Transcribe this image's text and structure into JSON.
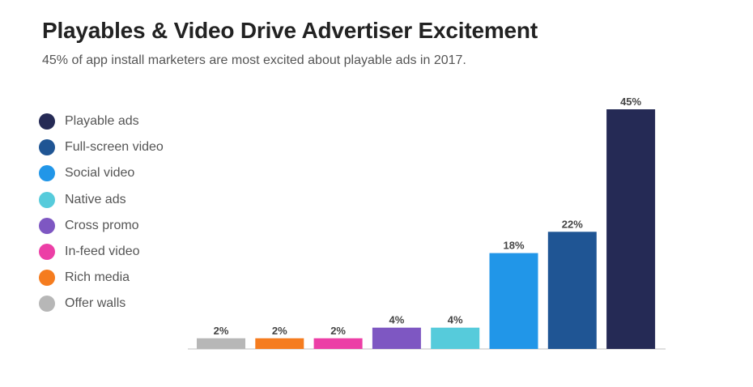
{
  "header": {
    "title": "Playables & Video Drive Advertiser Excitement",
    "subtitle": "45% of app install marketers are most excited about playable ads in 2017."
  },
  "chart_data": {
    "type": "bar",
    "title": "Playables & Video Drive Advertiser Excitement",
    "subtitle": "45% of app install marketers are most excited about playable ads in 2017.",
    "xlabel": "",
    "ylabel": "",
    "ylim": [
      0,
      45
    ],
    "grid": false,
    "legend_position": "left",
    "value_suffix": "%",
    "categories": [
      "Offer walls",
      "Rich media",
      "In-feed video",
      "Cross promo",
      "Native ads",
      "Social video",
      "Full-screen video",
      "Playable ads"
    ],
    "values": [
      2,
      2,
      2,
      4,
      4,
      18,
      22,
      45
    ],
    "colors": [
      "#b7b7b7",
      "#f57c1f",
      "#ec3fa6",
      "#7e57c2",
      "#56cbdb",
      "#2196e8",
      "#1f5594",
      "#252a55"
    ]
  },
  "legend": {
    "items": [
      {
        "label": "Playable ads",
        "color": "#252a55"
      },
      {
        "label": "Full-screen video",
        "color": "#1f5594"
      },
      {
        "label": "Social video",
        "color": "#2196e8"
      },
      {
        "label": "Native ads",
        "color": "#56cbdb"
      },
      {
        "label": "Cross promo",
        "color": "#7e57c2"
      },
      {
        "label": "In-feed video",
        "color": "#ec3fa6"
      },
      {
        "label": "Rich media",
        "color": "#f57c1f"
      },
      {
        "label": "Offer walls",
        "color": "#b7b7b7"
      }
    ]
  }
}
